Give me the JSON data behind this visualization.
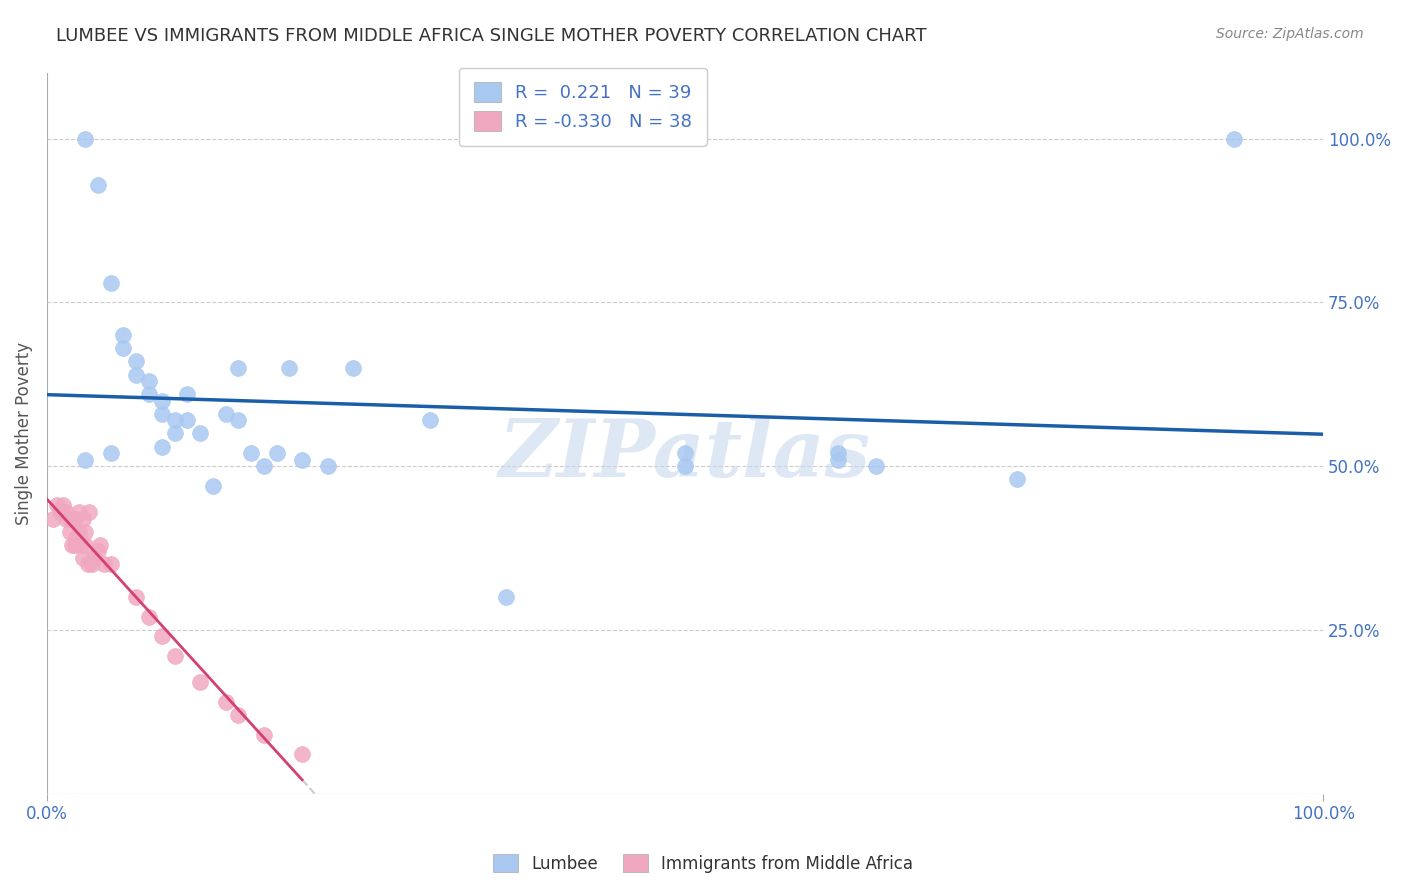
{
  "title": "LUMBEE VS IMMIGRANTS FROM MIDDLE AFRICA SINGLE MOTHER POVERTY CORRELATION CHART",
  "source": "Source: ZipAtlas.com",
  "ylabel": "Single Mother Poverty",
  "legend_label1": "Lumbee",
  "legend_label2": "Immigrants from Middle Africa",
  "R1": 0.221,
  "N1": 39,
  "R2": -0.33,
  "N2": 38,
  "watermark": "ZIPatlas",
  "lumbee_color": "#a8c8f0",
  "lumbee_line_color": "#1a5ea8",
  "immigrant_color": "#f0a8c0",
  "immigrant_line_color": "#d44070",
  "right_axis_color": "#4472c4",
  "lumbee_x": [
    0.03,
    0.04,
    0.05,
    0.06,
    0.06,
    0.07,
    0.07,
    0.08,
    0.08,
    0.09,
    0.09,
    0.09,
    0.1,
    0.1,
    0.11,
    0.11,
    0.12,
    0.13,
    0.14,
    0.15,
    0.15,
    0.16,
    0.17,
    0.18,
    0.19,
    0.2,
    0.22,
    0.24,
    0.3,
    0.36,
    0.5,
    0.5,
    0.62,
    0.62,
    0.65,
    0.76,
    0.93,
    0.03,
    0.05
  ],
  "lumbee_y": [
    1.0,
    0.93,
    0.78,
    0.7,
    0.68,
    0.66,
    0.64,
    0.63,
    0.61,
    0.6,
    0.58,
    0.53,
    0.57,
    0.55,
    0.61,
    0.57,
    0.55,
    0.47,
    0.58,
    0.65,
    0.57,
    0.52,
    0.5,
    0.52,
    0.65,
    0.51,
    0.5,
    0.65,
    0.57,
    0.3,
    0.52,
    0.5,
    0.52,
    0.51,
    0.5,
    0.48,
    1.0,
    0.51,
    0.52
  ],
  "immigrant_x": [
    0.005,
    0.008,
    0.01,
    0.012,
    0.013,
    0.015,
    0.015,
    0.018,
    0.018,
    0.02,
    0.021,
    0.022,
    0.022,
    0.023,
    0.025,
    0.025,
    0.027,
    0.028,
    0.028,
    0.03,
    0.03,
    0.032,
    0.033,
    0.035,
    0.037,
    0.04,
    0.042,
    0.045,
    0.05,
    0.07,
    0.08,
    0.09,
    0.1,
    0.12,
    0.14,
    0.15,
    0.17,
    0.2
  ],
  "immigrant_y": [
    0.42,
    0.44,
    0.43,
    0.43,
    0.44,
    0.42,
    0.43,
    0.4,
    0.42,
    0.38,
    0.42,
    0.42,
    0.38,
    0.39,
    0.4,
    0.43,
    0.38,
    0.36,
    0.42,
    0.38,
    0.4,
    0.35,
    0.43,
    0.35,
    0.36,
    0.37,
    0.38,
    0.35,
    0.35,
    0.3,
    0.27,
    0.24,
    0.21,
    0.17,
    0.14,
    0.12,
    0.09,
    0.06
  ],
  "xlim": [
    0.0,
    1.0
  ],
  "ylim": [
    0.0,
    1.1
  ],
  "ytick_right": [
    0.0,
    0.25,
    0.5,
    0.75,
    1.0
  ],
  "ytick_right_labels": [
    "",
    "25.0%",
    "50.0%",
    "75.0%",
    "100.0%"
  ],
  "xtick_labels": [
    "0.0%",
    "100.0%"
  ],
  "background_color": "#ffffff",
  "grid_color": "#cccccc",
  "title_color": "#333333",
  "axis_label_color": "#4472c4"
}
